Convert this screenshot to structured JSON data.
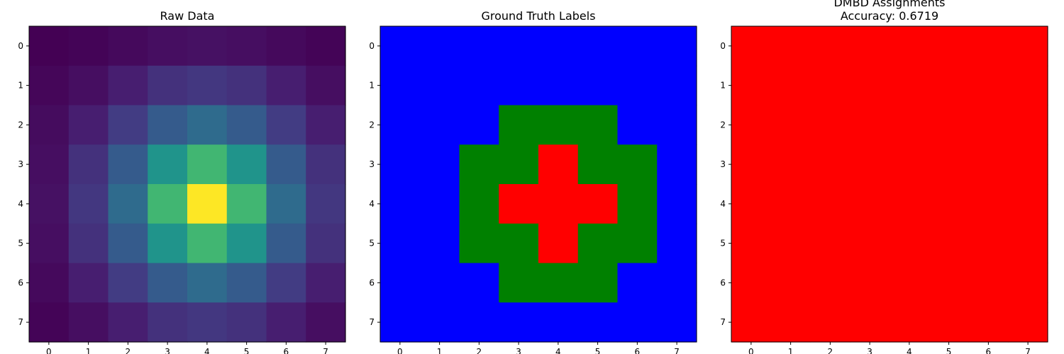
{
  "chart_data": [
    {
      "type": "heatmap",
      "title": "Raw Data",
      "xlabel": "",
      "ylabel": "",
      "x_ticks": [
        "0",
        "1",
        "2",
        "3",
        "4",
        "5",
        "6",
        "7"
      ],
      "y_ticks": [
        "0",
        "1",
        "2",
        "3",
        "4",
        "5",
        "6",
        "7"
      ],
      "colormap": "viridis",
      "values": [
        [
          0.02,
          0.03,
          0.05,
          0.07,
          0.08,
          0.07,
          0.05,
          0.03
        ],
        [
          0.04,
          0.07,
          0.13,
          0.2,
          0.22,
          0.2,
          0.13,
          0.07
        ],
        [
          0.06,
          0.13,
          0.24,
          0.38,
          0.45,
          0.38,
          0.24,
          0.13
        ],
        [
          0.07,
          0.2,
          0.38,
          0.65,
          0.8,
          0.65,
          0.38,
          0.2
        ],
        [
          0.08,
          0.22,
          0.45,
          0.8,
          1.0,
          0.8,
          0.45,
          0.22
        ],
        [
          0.07,
          0.2,
          0.38,
          0.65,
          0.8,
          0.65,
          0.38,
          0.2
        ],
        [
          0.05,
          0.13,
          0.24,
          0.38,
          0.45,
          0.38,
          0.24,
          0.13
        ],
        [
          0.03,
          0.07,
          0.13,
          0.2,
          0.22,
          0.2,
          0.13,
          0.07
        ]
      ],
      "grid": false
    },
    {
      "type": "heatmap",
      "title": "Ground Truth Labels",
      "xlabel": "",
      "ylabel": "",
      "x_ticks": [
        "0",
        "1",
        "2",
        "3",
        "4",
        "5",
        "6",
        "7"
      ],
      "y_ticks": [
        "0",
        "1",
        "2",
        "3",
        "4",
        "5",
        "6",
        "7"
      ],
      "label_colors": [
        "#0000ff",
        "#008000",
        "#ff0000"
      ],
      "values": [
        [
          0,
          0,
          0,
          0,
          0,
          0,
          0,
          0
        ],
        [
          0,
          0,
          0,
          0,
          0,
          0,
          0,
          0
        ],
        [
          0,
          0,
          0,
          1,
          1,
          1,
          0,
          0
        ],
        [
          0,
          0,
          1,
          1,
          2,
          1,
          1,
          0
        ],
        [
          0,
          0,
          1,
          2,
          2,
          2,
          1,
          0
        ],
        [
          0,
          0,
          1,
          1,
          2,
          1,
          1,
          0
        ],
        [
          0,
          0,
          0,
          1,
          1,
          1,
          0,
          0
        ],
        [
          0,
          0,
          0,
          0,
          0,
          0,
          0,
          0
        ]
      ],
      "grid": false
    },
    {
      "type": "heatmap",
      "title": "DMBD Assignments",
      "subtitle": "Accuracy: 0.6719",
      "xlabel": "",
      "ylabel": "",
      "x_ticks": [
        "0",
        "1",
        "2",
        "3",
        "4",
        "5",
        "6",
        "7"
      ],
      "y_ticks": [
        "0",
        "1",
        "2",
        "3",
        "4",
        "5",
        "6",
        "7"
      ],
      "label_colors": [
        "#ff0000"
      ],
      "values": [
        [
          0,
          0,
          0,
          0,
          0,
          0,
          0,
          0
        ],
        [
          0,
          0,
          0,
          0,
          0,
          0,
          0,
          0
        ],
        [
          0,
          0,
          0,
          0,
          0,
          0,
          0,
          0
        ],
        [
          0,
          0,
          0,
          0,
          0,
          0,
          0,
          0
        ],
        [
          0,
          0,
          0,
          0,
          0,
          0,
          0,
          0
        ],
        [
          0,
          0,
          0,
          0,
          0,
          0,
          0,
          0
        ],
        [
          0,
          0,
          0,
          0,
          0,
          0,
          0,
          0
        ],
        [
          0,
          0,
          0,
          0,
          0,
          0,
          0,
          0
        ]
      ],
      "grid": false
    }
  ]
}
